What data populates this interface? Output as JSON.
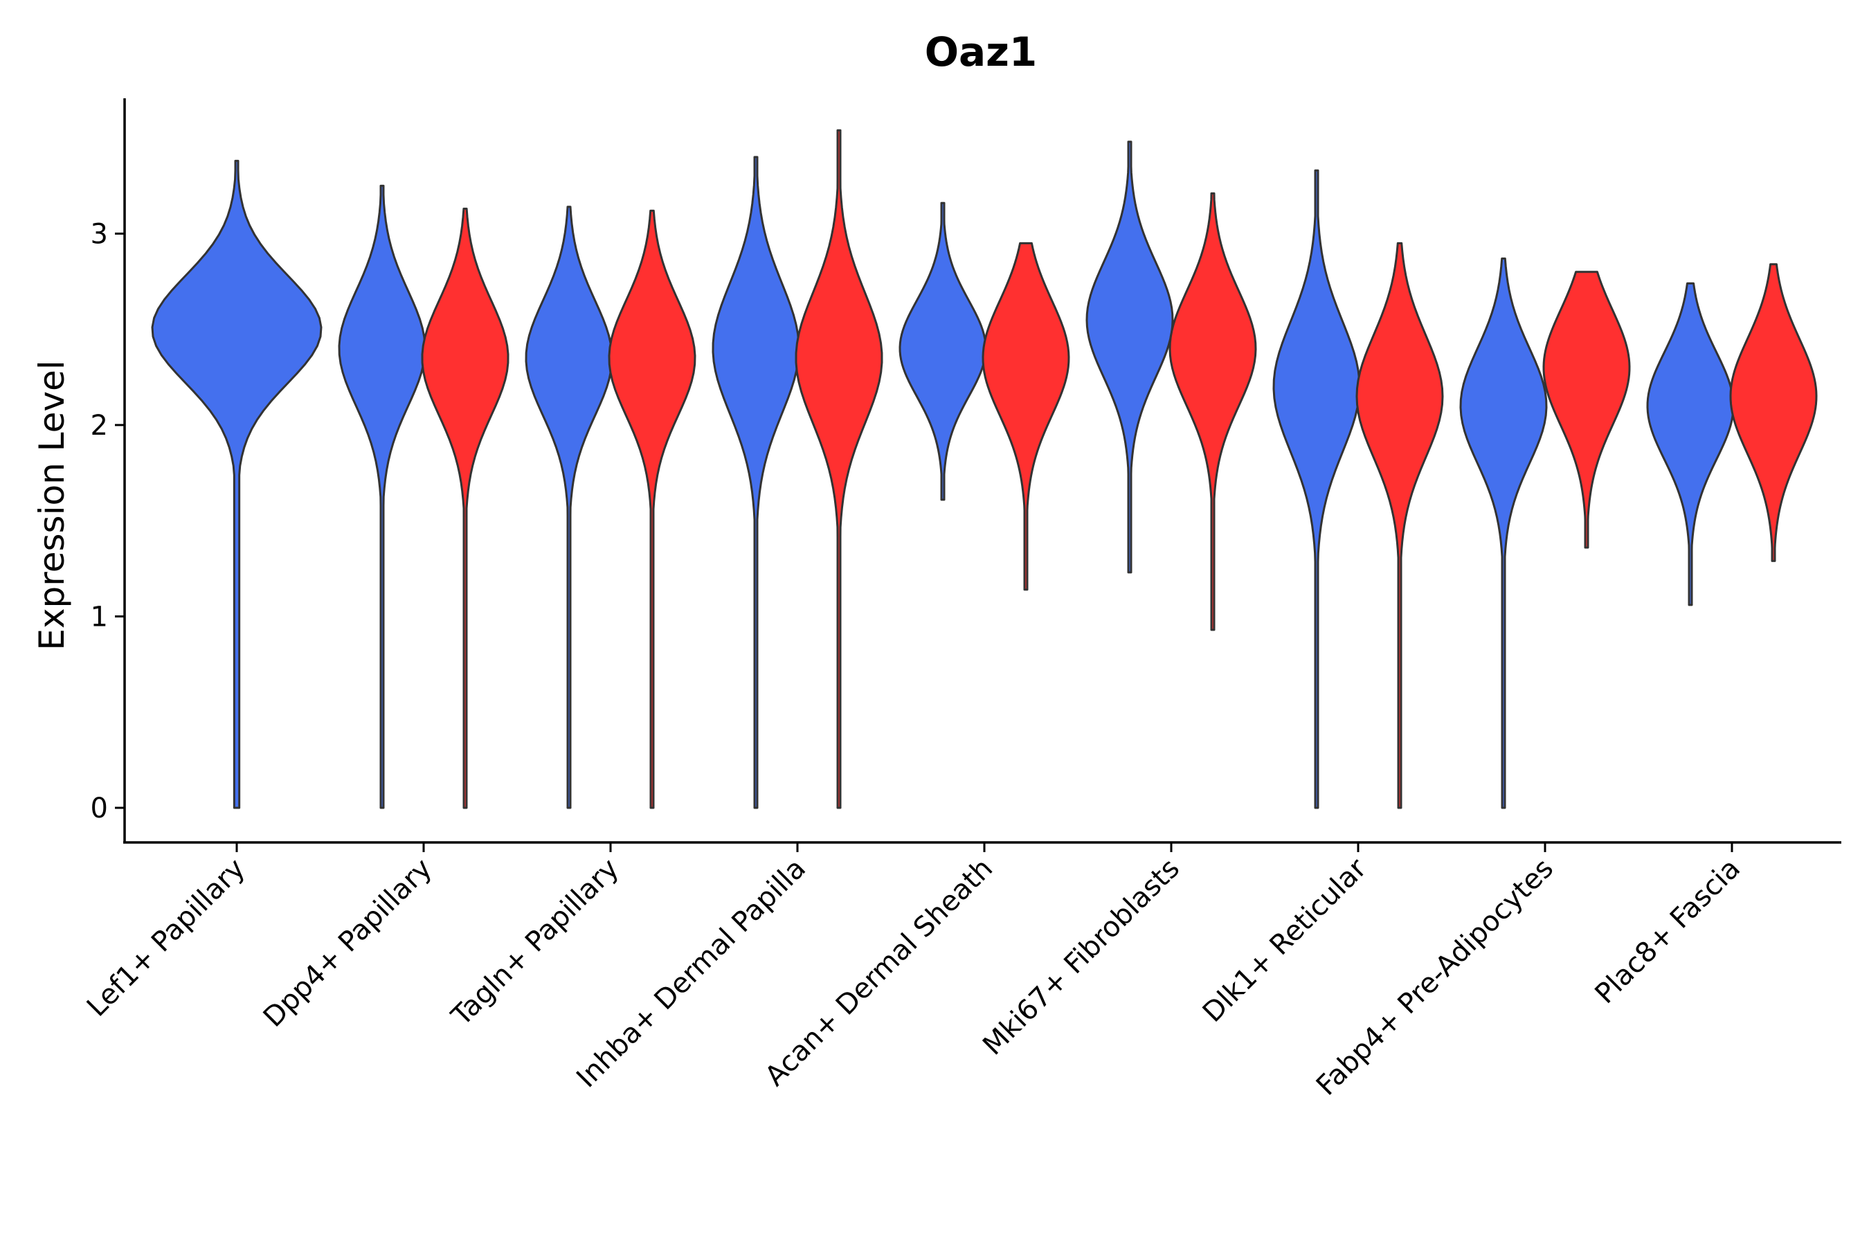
{
  "chart_data": {
    "type": "violin",
    "title": "Oaz1",
    "xlabel": "",
    "ylabel": "Expression Level",
    "ylim": [
      -0.18,
      3.7
    ],
    "yticks": [
      0,
      1,
      2,
      3
    ],
    "grid": false,
    "legend": "none",
    "colors": {
      "blue": "#4470EE",
      "red": "#FF3030"
    },
    "categories": [
      "Lef1+ Papillary",
      "Dpp4+ Papillary",
      "Tagln+ Papillary",
      "Inhba+ Dermal Papilla",
      "Acan+ Dermal Sheath",
      "Mki67+ Fibroblasts",
      "Dlk1+ Reticular",
      "Fabp4+ Pre-Adipocytes",
      "Plac8+ Fascia"
    ],
    "violins": [
      {
        "category": "Lef1+ Papillary",
        "color": "blue",
        "offset": 0,
        "min": 0,
        "max": 3.38,
        "mode": 2.5,
        "spread": 0.28,
        "width": 1.0
      },
      {
        "category": "Dpp4+ Papillary",
        "color": "blue",
        "offset": -1,
        "min": 0,
        "max": 3.25,
        "mode": 2.4,
        "spread": 0.3,
        "width": 0.5
      },
      {
        "category": "Dpp4+ Papillary",
        "color": "red",
        "offset": 1,
        "min": 0,
        "max": 3.13,
        "mode": 2.35,
        "spread": 0.3,
        "width": 0.5
      },
      {
        "category": "Tagln+ Papillary",
        "color": "blue",
        "offset": -1,
        "min": 0,
        "max": 3.14,
        "mode": 2.35,
        "spread": 0.3,
        "width": 0.5
      },
      {
        "category": "Tagln+ Papillary",
        "color": "red",
        "offset": 1,
        "min": 0,
        "max": 3.12,
        "mode": 2.35,
        "spread": 0.3,
        "width": 0.5
      },
      {
        "category": "Inhba+ Dermal Papilla",
        "color": "blue",
        "offset": -1,
        "min": 0,
        "max": 3.4,
        "mode": 2.4,
        "spread": 0.34,
        "width": 0.5
      },
      {
        "category": "Inhba+ Dermal Papilla",
        "color": "red",
        "offset": 1,
        "min": 0,
        "max": 3.54,
        "mode": 2.35,
        "spread": 0.34,
        "width": 0.5
      },
      {
        "category": "Acan+ Dermal Sheath",
        "color": "blue",
        "offset": -1,
        "min": 1.61,
        "max": 3.16,
        "mode": 2.4,
        "spread": 0.25,
        "width": 0.5
      },
      {
        "category": "Acan+ Dermal Sheath",
        "color": "red",
        "offset": 1,
        "min": 1.14,
        "max": 2.95,
        "mode": 2.35,
        "spread": 0.3,
        "width": 0.5
      },
      {
        "category": "Mki67+ Fibroblasts",
        "color": "blue",
        "offset": -1,
        "min": 1.23,
        "max": 3.48,
        "mode": 2.55,
        "spread": 0.3,
        "width": 0.5
      },
      {
        "category": "Mki67+ Fibroblasts",
        "color": "red",
        "offset": 1,
        "min": 0.93,
        "max": 3.21,
        "mode": 2.4,
        "spread": 0.3,
        "width": 0.5
      },
      {
        "category": "Dlk1+ Reticular",
        "color": "blue",
        "offset": -1,
        "min": 0,
        "max": 3.33,
        "mode": 2.2,
        "spread": 0.34,
        "width": 0.5
      },
      {
        "category": "Dlk1+ Reticular",
        "color": "red",
        "offset": 1,
        "min": 0,
        "max": 2.95,
        "mode": 2.15,
        "spread": 0.32,
        "width": 0.5
      },
      {
        "category": "Fabp4+ Pre-Adipocytes",
        "color": "blue",
        "offset": -1,
        "min": 0,
        "max": 2.87,
        "mode": 2.1,
        "spread": 0.3,
        "width": 0.5
      },
      {
        "category": "Fabp4+ Pre-Adipocytes",
        "color": "red",
        "offset": 1,
        "min": 1.36,
        "max": 2.8,
        "mode": 2.3,
        "spread": 0.3,
        "width": 0.5
      },
      {
        "category": "Plac8+ Fascia",
        "color": "blue",
        "offset": -1,
        "min": 1.06,
        "max": 2.74,
        "mode": 2.1,
        "spread": 0.28,
        "width": 0.5
      },
      {
        "category": "Plac8+ Fascia",
        "color": "red",
        "offset": 1,
        "min": 1.29,
        "max": 2.84,
        "mode": 2.15,
        "spread": 0.3,
        "width": 0.5
      }
    ]
  }
}
